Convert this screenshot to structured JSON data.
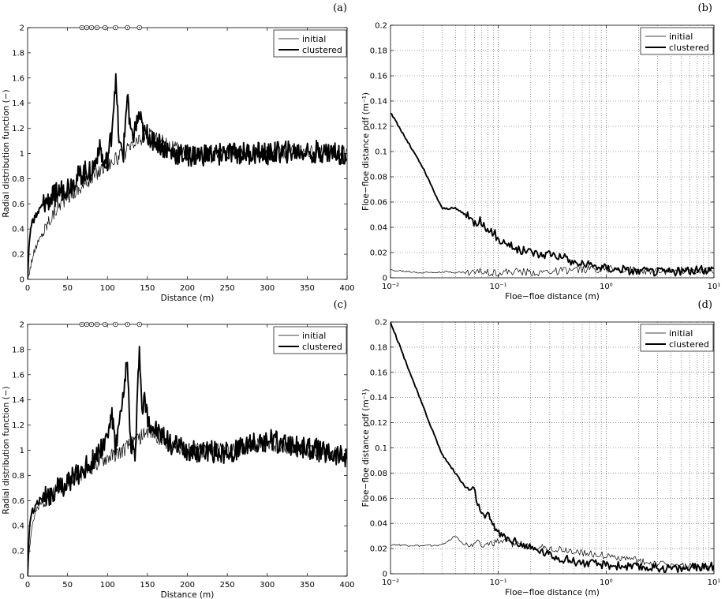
{
  "figure": {
    "panels": [
      {
        "id": "a",
        "label": "(a)"
      },
      {
        "id": "b",
        "label": "(b)"
      },
      {
        "id": "c",
        "label": "(c)"
      },
      {
        "id": "d",
        "label": "(d)"
      }
    ]
  },
  "chart_data": [
    {
      "panel": "(a)",
      "type": "line",
      "title": "",
      "xlabel": "Distance (m)",
      "ylabel": "Radial distribution function (−)",
      "xlim": [
        0,
        400
      ],
      "ylim": [
        0,
        2
      ],
      "xticks": [
        "0",
        "50",
        "100",
        "150",
        "200",
        "250",
        "300",
        "350",
        "400"
      ],
      "yticks": [
        "0",
        "0.2",
        "0.4",
        "0.6",
        "0.8",
        "1",
        "1.2",
        "1.4",
        "1.6",
        "1.8",
        "2"
      ],
      "grid": false,
      "legend_position": "top-right",
      "top_markers_x": [
        68,
        74,
        80,
        87,
        97,
        110,
        125,
        140
      ],
      "series": [
        {
          "name": "initial",
          "style": "thin",
          "x": [
            0,
            2,
            5,
            10,
            15,
            20,
            25,
            30,
            35,
            40,
            45,
            50,
            55,
            60,
            65,
            70,
            75,
            80,
            85,
            90,
            95,
            100,
            110,
            120,
            130,
            140,
            150,
            160,
            170,
            180,
            200,
            250,
            300,
            350,
            400
          ],
          "y": [
            0,
            0.05,
            0.15,
            0.25,
            0.32,
            0.38,
            0.45,
            0.5,
            0.55,
            0.6,
            0.63,
            0.66,
            0.68,
            0.7,
            0.72,
            0.75,
            0.78,
            0.8,
            0.84,
            0.86,
            0.9,
            0.92,
            0.95,
            1.0,
            1.05,
            1.1,
            1.15,
            1.12,
            1.1,
            1.05,
            1.0,
            1.0,
            1.0,
            1.02,
            1.0
          ]
        },
        {
          "name": "clustered",
          "style": "thick",
          "x": [
            0,
            2,
            5,
            10,
            15,
            20,
            25,
            30,
            35,
            40,
            45,
            50,
            55,
            60,
            65,
            70,
            75,
            80,
            85,
            90,
            95,
            100,
            105,
            110,
            115,
            120,
            125,
            130,
            135,
            140,
            145,
            150,
            160,
            170,
            180,
            200,
            250,
            300,
            350,
            400
          ],
          "y": [
            0,
            0.3,
            0.45,
            0.5,
            0.55,
            0.6,
            0.62,
            0.65,
            0.67,
            0.7,
            0.72,
            0.74,
            0.76,
            0.8,
            0.82,
            0.85,
            0.86,
            0.88,
            0.92,
            1.1,
            0.9,
            0.95,
            1.15,
            1.6,
            1.05,
            1.0,
            1.5,
            1.1,
            1.2,
            1.3,
            1.15,
            1.15,
            1.1,
            1.05,
            1.0,
            0.98,
            1.0,
            1.0,
            1.02,
            1.0
          ]
        }
      ]
    },
    {
      "panel": "(b)",
      "type": "line",
      "title": "",
      "xscale": "log",
      "xlabel": "Floe−floe distance (m)",
      "ylabel": "Floe−floe distance pdf (m⁻¹)",
      "xlim": [
        0.01,
        10
      ],
      "ylim": [
        0,
        0.2
      ],
      "xticks": [
        "10⁻²",
        "10⁻¹",
        "10⁰",
        "10¹"
      ],
      "yticks": [
        "0",
        "0.02",
        "0.04",
        "0.06",
        "0.08",
        "0.1",
        "0.12",
        "0.14",
        "0.16",
        "0.18",
        "0.2"
      ],
      "grid": true,
      "legend_position": "top-right",
      "series": [
        {
          "name": "initial",
          "style": "thin",
          "x": [
            0.01,
            0.02,
            0.03,
            0.05,
            0.07,
            0.1,
            0.15,
            0.2,
            0.3,
            0.5,
            0.7,
            1,
            2,
            3,
            5,
            7,
            10
          ],
          "y": [
            0.006,
            0.004,
            0.005,
            0.004,
            0.005,
            0.004,
            0.005,
            0.004,
            0.005,
            0.006,
            0.007,
            0.007,
            0.006,
            0.005,
            0.006,
            0.005,
            0.006
          ]
        },
        {
          "name": "clustered",
          "style": "thick",
          "x": [
            0.01,
            0.02,
            0.03,
            0.04,
            0.05,
            0.06,
            0.07,
            0.08,
            0.09,
            0.1,
            0.12,
            0.15,
            0.2,
            0.25,
            0.3,
            0.4,
            0.5,
            0.7,
            1,
            1.5,
            2,
            3,
            5,
            7,
            10
          ],
          "y": [
            0.131,
            0.087,
            0.055,
            0.055,
            0.05,
            0.044,
            0.045,
            0.035,
            0.037,
            0.03,
            0.028,
            0.022,
            0.021,
            0.018,
            0.02,
            0.016,
            0.012,
            0.01,
            0.008,
            0.006,
            0.005,
            0.005,
            0.005,
            0.006,
            0.007
          ]
        }
      ]
    },
    {
      "panel": "(c)",
      "type": "line",
      "title": "",
      "xlabel": "Distance (m)",
      "ylabel": "Radial distribution function (−)",
      "xlim": [
        0,
        400
      ],
      "ylim": [
        0,
        2
      ],
      "xticks": [
        "0",
        "50",
        "100",
        "150",
        "200",
        "250",
        "300",
        "350",
        "400"
      ],
      "yticks": [
        "0",
        "0.2",
        "0.4",
        "0.6",
        "0.8",
        "1",
        "1.2",
        "1.4",
        "1.6",
        "1.8",
        "2"
      ],
      "grid": false,
      "legend_position": "top-right",
      "top_markers_x": [
        68,
        74,
        80,
        87,
        97,
        110,
        125,
        140
      ],
      "series": [
        {
          "name": "initial",
          "style": "thin",
          "x": [
            0,
            2,
            5,
            10,
            15,
            20,
            25,
            30,
            35,
            40,
            45,
            50,
            55,
            60,
            65,
            70,
            75,
            80,
            85,
            90,
            95,
            100,
            110,
            120,
            130,
            140,
            150,
            160,
            170,
            180,
            200,
            250,
            300,
            350,
            400
          ],
          "y": [
            0,
            0.2,
            0.4,
            0.5,
            0.56,
            0.6,
            0.63,
            0.66,
            0.68,
            0.7,
            0.72,
            0.74,
            0.76,
            0.78,
            0.8,
            0.82,
            0.84,
            0.86,
            0.88,
            0.9,
            0.92,
            0.94,
            0.96,
            1.0,
            1.05,
            1.1,
            1.15,
            1.12,
            1.08,
            1.05,
            1.0,
            1.0,
            1.05,
            1.0,
            0.95
          ]
        },
        {
          "name": "clustered",
          "style": "thick",
          "x": [
            0,
            2,
            5,
            10,
            15,
            20,
            25,
            30,
            35,
            40,
            45,
            50,
            55,
            60,
            65,
            70,
            75,
            80,
            85,
            90,
            95,
            100,
            105,
            110,
            115,
            120,
            125,
            128,
            132,
            135,
            140,
            143,
            147,
            150,
            160,
            170,
            180,
            200,
            250,
            300,
            350,
            400
          ],
          "y": [
            0,
            0.35,
            0.5,
            0.55,
            0.6,
            0.62,
            0.64,
            0.66,
            0.68,
            0.7,
            0.72,
            0.74,
            0.78,
            0.8,
            0.82,
            0.85,
            0.88,
            0.9,
            0.95,
            1.0,
            1.05,
            1.1,
            1.3,
            1.0,
            1.2,
            1.4,
            1.75,
            1.1,
            1.0,
            0.95,
            1.85,
            1.3,
            1.4,
            1.25,
            1.15,
            1.1,
            1.05,
            1.0,
            0.98,
            1.08,
            1.02,
            0.95
          ]
        }
      ]
    },
    {
      "panel": "(d)",
      "type": "line",
      "title": "",
      "xscale": "log",
      "xlabel": "Floe−floe distance (m)",
      "ylabel": "Floe−floe distance pdf (m⁻¹)",
      "xlim": [
        0.01,
        10
      ],
      "ylim": [
        0,
        0.2
      ],
      "xticks": [
        "10⁻²",
        "10⁻¹",
        "10⁰",
        "10¹"
      ],
      "yticks": [
        "0",
        "0.02",
        "0.04",
        "0.06",
        "0.08",
        "0.1",
        "0.12",
        "0.14",
        "0.16",
        "0.18",
        "0.2"
      ],
      "grid": true,
      "legend_position": "top-right",
      "series": [
        {
          "name": "initial",
          "style": "thin",
          "x": [
            0.01,
            0.02,
            0.03,
            0.04,
            0.05,
            0.06,
            0.08,
            0.1,
            0.15,
            0.2,
            0.3,
            0.5,
            0.7,
            1,
            1.5,
            2,
            3,
            5,
            7,
            10
          ],
          "y": [
            0.023,
            0.022,
            0.023,
            0.03,
            0.022,
            0.025,
            0.023,
            0.025,
            0.024,
            0.022,
            0.02,
            0.018,
            0.016,
            0.014,
            0.012,
            0.01,
            0.008,
            0.006,
            0.005,
            0.005
          ]
        },
        {
          "name": "clustered",
          "style": "thick",
          "x": [
            0.01,
            0.02,
            0.03,
            0.04,
            0.05,
            0.06,
            0.07,
            0.08,
            0.09,
            0.1,
            0.12,
            0.15,
            0.2,
            0.25,
            0.3,
            0.4,
            0.5,
            0.7,
            1,
            1.5,
            2,
            3,
            5,
            7,
            10
          ],
          "y": [
            0.2,
            0.133,
            0.095,
            0.08,
            0.068,
            0.066,
            0.045,
            0.046,
            0.04,
            0.032,
            0.028,
            0.025,
            0.02,
            0.018,
            0.015,
            0.012,
            0.01,
            0.008,
            0.007,
            0.006,
            0.005,
            0.005,
            0.004,
            0.005,
            0.006
          ]
        }
      ]
    }
  ]
}
